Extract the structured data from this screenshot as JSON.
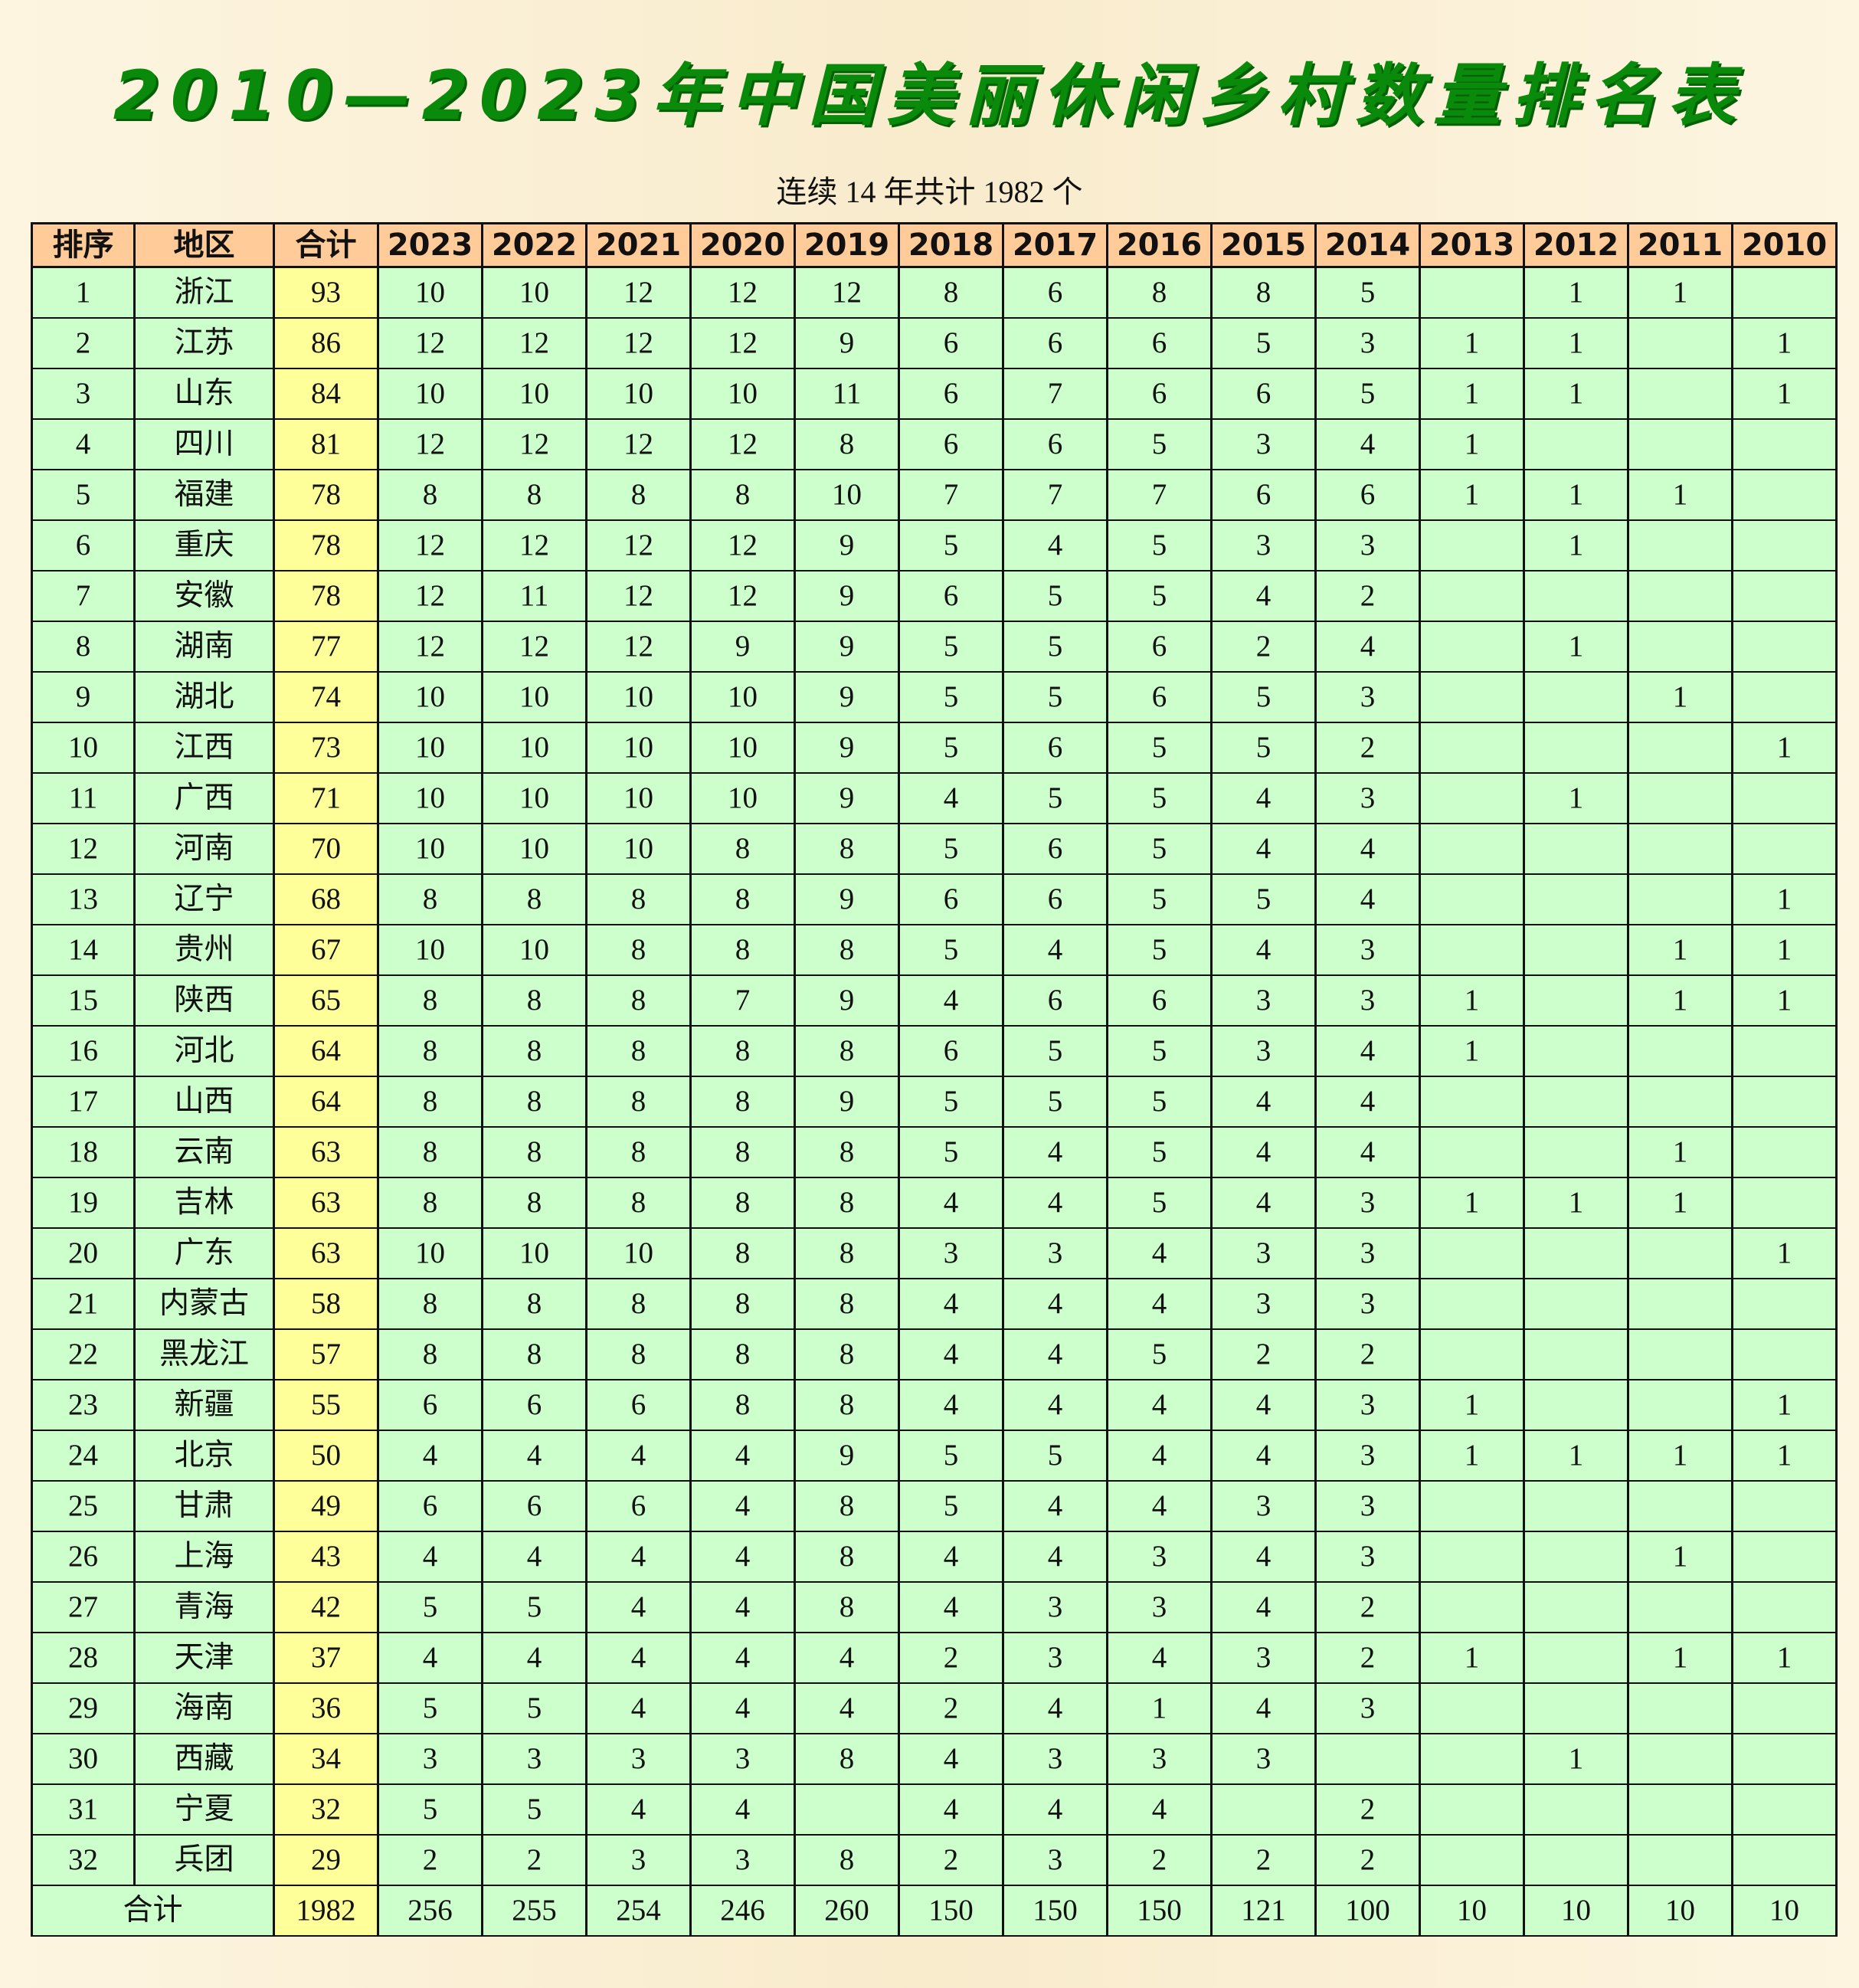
{
  "title": "2010—2023年中国美丽休闲乡村数量排名表",
  "subtitle": "连续 14 年共计 1982 个",
  "colors": {
    "header": "#ffcc99",
    "cell": "#ccffcc",
    "total_column": "#ffff99",
    "title": "#0a8a0a"
  },
  "table": {
    "headers": [
      "排序",
      "地区",
      "合计",
      "2023",
      "2022",
      "2021",
      "2020",
      "2019",
      "2018",
      "2017",
      "2016",
      "2015",
      "2014",
      "2013",
      "2012",
      "2011",
      "2010"
    ],
    "rows": [
      [
        "1",
        "浙江",
        "93",
        "10",
        "10",
        "12",
        "12",
        "12",
        "8",
        "6",
        "8",
        "8",
        "5",
        "",
        "1",
        "1",
        ""
      ],
      [
        "2",
        "江苏",
        "86",
        "12",
        "12",
        "12",
        "12",
        "9",
        "6",
        "6",
        "6",
        "5",
        "3",
        "1",
        "1",
        "",
        "1"
      ],
      [
        "3",
        "山东",
        "84",
        "10",
        "10",
        "10",
        "10",
        "11",
        "6",
        "7",
        "6",
        "6",
        "5",
        "1",
        "1",
        "",
        "1"
      ],
      [
        "4",
        "四川",
        "81",
        "12",
        "12",
        "12",
        "12",
        "8",
        "6",
        "6",
        "5",
        "3",
        "4",
        "1",
        "",
        "",
        ""
      ],
      [
        "5",
        "福建",
        "78",
        "8",
        "8",
        "8",
        "8",
        "10",
        "7",
        "7",
        "7",
        "6",
        "6",
        "1",
        "1",
        "1",
        ""
      ],
      [
        "6",
        "重庆",
        "78",
        "12",
        "12",
        "12",
        "12",
        "9",
        "5",
        "4",
        "5",
        "3",
        "3",
        "",
        "1",
        "",
        ""
      ],
      [
        "7",
        "安徽",
        "78",
        "12",
        "11",
        "12",
        "12",
        "9",
        "6",
        "5",
        "5",
        "4",
        "2",
        "",
        "",
        "",
        ""
      ],
      [
        "8",
        "湖南",
        "77",
        "12",
        "12",
        "12",
        "9",
        "9",
        "5",
        "5",
        "6",
        "2",
        "4",
        "",
        "1",
        "",
        ""
      ],
      [
        "9",
        "湖北",
        "74",
        "10",
        "10",
        "10",
        "10",
        "9",
        "5",
        "5",
        "6",
        "5",
        "3",
        "",
        "",
        "1",
        ""
      ],
      [
        "10",
        "江西",
        "73",
        "10",
        "10",
        "10",
        "10",
        "9",
        "5",
        "6",
        "5",
        "5",
        "2",
        "",
        "",
        "",
        "1"
      ],
      [
        "11",
        "广西",
        "71",
        "10",
        "10",
        "10",
        "10",
        "9",
        "4",
        "5",
        "5",
        "4",
        "3",
        "",
        "1",
        "",
        ""
      ],
      [
        "12",
        "河南",
        "70",
        "10",
        "10",
        "10",
        "8",
        "8",
        "5",
        "6",
        "5",
        "4",
        "4",
        "",
        "",
        "",
        ""
      ],
      [
        "13",
        "辽宁",
        "68",
        "8",
        "8",
        "8",
        "8",
        "9",
        "6",
        "6",
        "5",
        "5",
        "4",
        "",
        "",
        "",
        "1"
      ],
      [
        "14",
        "贵州",
        "67",
        "10",
        "10",
        "8",
        "8",
        "8",
        "5",
        "4",
        "5",
        "4",
        "3",
        "",
        "",
        "1",
        "1"
      ],
      [
        "15",
        "陕西",
        "65",
        "8",
        "8",
        "8",
        "7",
        "9",
        "4",
        "6",
        "6",
        "3",
        "3",
        "1",
        "",
        "1",
        "1"
      ],
      [
        "16",
        "河北",
        "64",
        "8",
        "8",
        "8",
        "8",
        "8",
        "6",
        "5",
        "5",
        "3",
        "4",
        "1",
        "",
        "",
        ""
      ],
      [
        "17",
        "山西",
        "64",
        "8",
        "8",
        "8",
        "8",
        "9",
        "5",
        "5",
        "5",
        "4",
        "4",
        "",
        "",
        "",
        ""
      ],
      [
        "18",
        "云南",
        "63",
        "8",
        "8",
        "8",
        "8",
        "8",
        "5",
        "4",
        "5",
        "4",
        "4",
        "",
        "",
        "1",
        ""
      ],
      [
        "19",
        "吉林",
        "63",
        "8",
        "8",
        "8",
        "8",
        "8",
        "4",
        "4",
        "5",
        "4",
        "3",
        "1",
        "1",
        "1",
        ""
      ],
      [
        "20",
        "广东",
        "63",
        "10",
        "10",
        "10",
        "8",
        "8",
        "3",
        "3",
        "4",
        "3",
        "3",
        "",
        "",
        "",
        "1"
      ],
      [
        "21",
        "内蒙古",
        "58",
        "8",
        "8",
        "8",
        "8",
        "8",
        "4",
        "4",
        "4",
        "3",
        "3",
        "",
        "",
        "",
        ""
      ],
      [
        "22",
        "黑龙江",
        "57",
        "8",
        "8",
        "8",
        "8",
        "8",
        "4",
        "4",
        "5",
        "2",
        "2",
        "",
        "",
        "",
        ""
      ],
      [
        "23",
        "新疆",
        "55",
        "6",
        "6",
        "6",
        "8",
        "8",
        "4",
        "4",
        "4",
        "4",
        "3",
        "1",
        "",
        "",
        "1"
      ],
      [
        "24",
        "北京",
        "50",
        "4",
        "4",
        "4",
        "4",
        "9",
        "5",
        "5",
        "4",
        "4",
        "3",
        "1",
        "1",
        "1",
        "1"
      ],
      [
        "25",
        "甘肃",
        "49",
        "6",
        "6",
        "6",
        "4",
        "8",
        "5",
        "4",
        "4",
        "3",
        "3",
        "",
        "",
        "",
        ""
      ],
      [
        "26",
        "上海",
        "43",
        "4",
        "4",
        "4",
        "4",
        "8",
        "4",
        "4",
        "3",
        "4",
        "3",
        "",
        "",
        "1",
        ""
      ],
      [
        "27",
        "青海",
        "42",
        "5",
        "5",
        "4",
        "4",
        "8",
        "4",
        "3",
        "3",
        "4",
        "2",
        "",
        "",
        "",
        ""
      ],
      [
        "28",
        "天津",
        "37",
        "4",
        "4",
        "4",
        "4",
        "4",
        "2",
        "3",
        "4",
        "3",
        "2",
        "1",
        "",
        "1",
        "1"
      ],
      [
        "29",
        "海南",
        "36",
        "5",
        "5",
        "4",
        "4",
        "4",
        "2",
        "4",
        "1",
        "4",
        "3",
        "",
        "",
        "",
        ""
      ],
      [
        "30",
        "西藏",
        "34",
        "3",
        "3",
        "3",
        "3",
        "8",
        "4",
        "3",
        "3",
        "3",
        "",
        "",
        "1",
        "",
        ""
      ],
      [
        "31",
        "宁夏",
        "32",
        "5",
        "5",
        "4",
        "4",
        "",
        "4",
        "4",
        "4",
        "",
        "2",
        "",
        "",
        "",
        ""
      ],
      [
        "32",
        "兵团",
        "29",
        "2",
        "2",
        "3",
        "3",
        "8",
        "2",
        "3",
        "2",
        "2",
        "2",
        "",
        "",
        "",
        ""
      ]
    ],
    "footer": {
      "label": "合计",
      "values": [
        "1982",
        "256",
        "255",
        "254",
        "246",
        "260",
        "150",
        "150",
        "150",
        "121",
        "100",
        "10",
        "10",
        "10",
        "10"
      ]
    }
  }
}
